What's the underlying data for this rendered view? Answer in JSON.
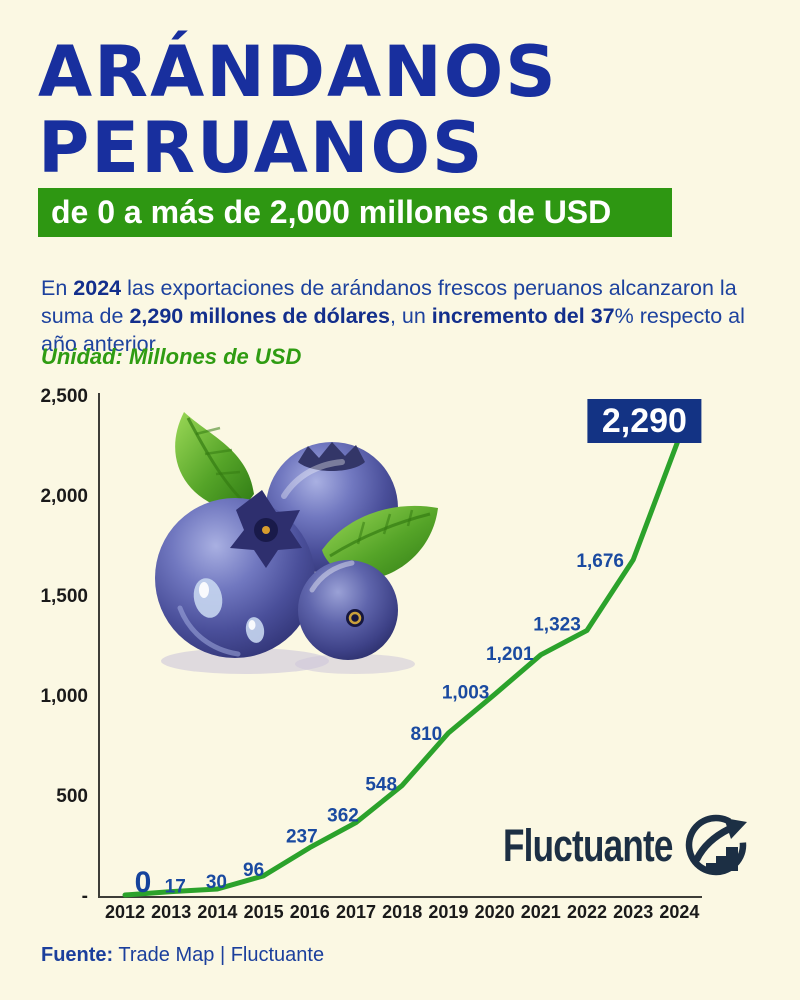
{
  "page": {
    "background": "#FBF8E3"
  },
  "header": {
    "title_line1": "ARÁNDANOS",
    "title_line2": "PERUANOS",
    "banner": "de 0 a más de 2,000 millones de USD",
    "title_color": "#182F9E",
    "banner_color": "#2E9712"
  },
  "intro": {
    "segments": [
      {
        "t": "En ",
        "b": false
      },
      {
        "t": "2024",
        "b": true
      },
      {
        "t": " las exportaciones de arándanos frescos peruanos alcanzaron la",
        "b": false
      },
      {
        "br": true
      },
      {
        "t": "suma de ",
        "b": false
      },
      {
        "t": "2,290 millones de dólares",
        "b": true
      },
      {
        "t": ", un ",
        "b": false
      },
      {
        "t": "incremento del 37",
        "b": true
      },
      {
        "t": "% respecto al",
        "b": false
      },
      {
        "br": true
      },
      {
        "t": "año anterior.",
        "b": false
      }
    ]
  },
  "unit_note": "Unidad: Millones de USD",
  "chart_data": {
    "type": "line",
    "x": [
      2012,
      2013,
      2014,
      2015,
      2016,
      2017,
      2018,
      2019,
      2020,
      2021,
      2022,
      2023,
      2024
    ],
    "values": [
      0,
      17,
      30,
      96,
      237,
      362,
      548,
      810,
      1003,
      1201,
      1323,
      1676,
      2290
    ],
    "point_labels": [
      "0",
      "17",
      "30",
      "96",
      "237",
      "362",
      "548",
      "810",
      "1,003",
      "1,201",
      "1,323",
      "1,676",
      "2,290"
    ],
    "ylabel": "Millones de USD",
    "ylim": [
      0,
      2500
    ],
    "ytick_values": [
      2500,
      2000,
      1500,
      1000,
      500,
      0
    ],
    "ytick_labels": [
      "2,500",
      "2,000",
      "1,500",
      "1,000",
      "500",
      "-"
    ],
    "grid": false,
    "legend": "none",
    "line_color": "#2BA22B",
    "label_color": "#1A4AA0",
    "axis_color": "#3D3D38",
    "highlight_last": {
      "label": "2,290",
      "box_color": "#133384",
      "text_color": "#FFFFFF"
    }
  },
  "logo": {
    "brand": "Fluctuante",
    "icon": "growth-arrow-circle-icon",
    "color": "#1C2F44"
  },
  "footer": {
    "label": "Fuente:",
    "text": " Trade Map | Fluctuante"
  }
}
